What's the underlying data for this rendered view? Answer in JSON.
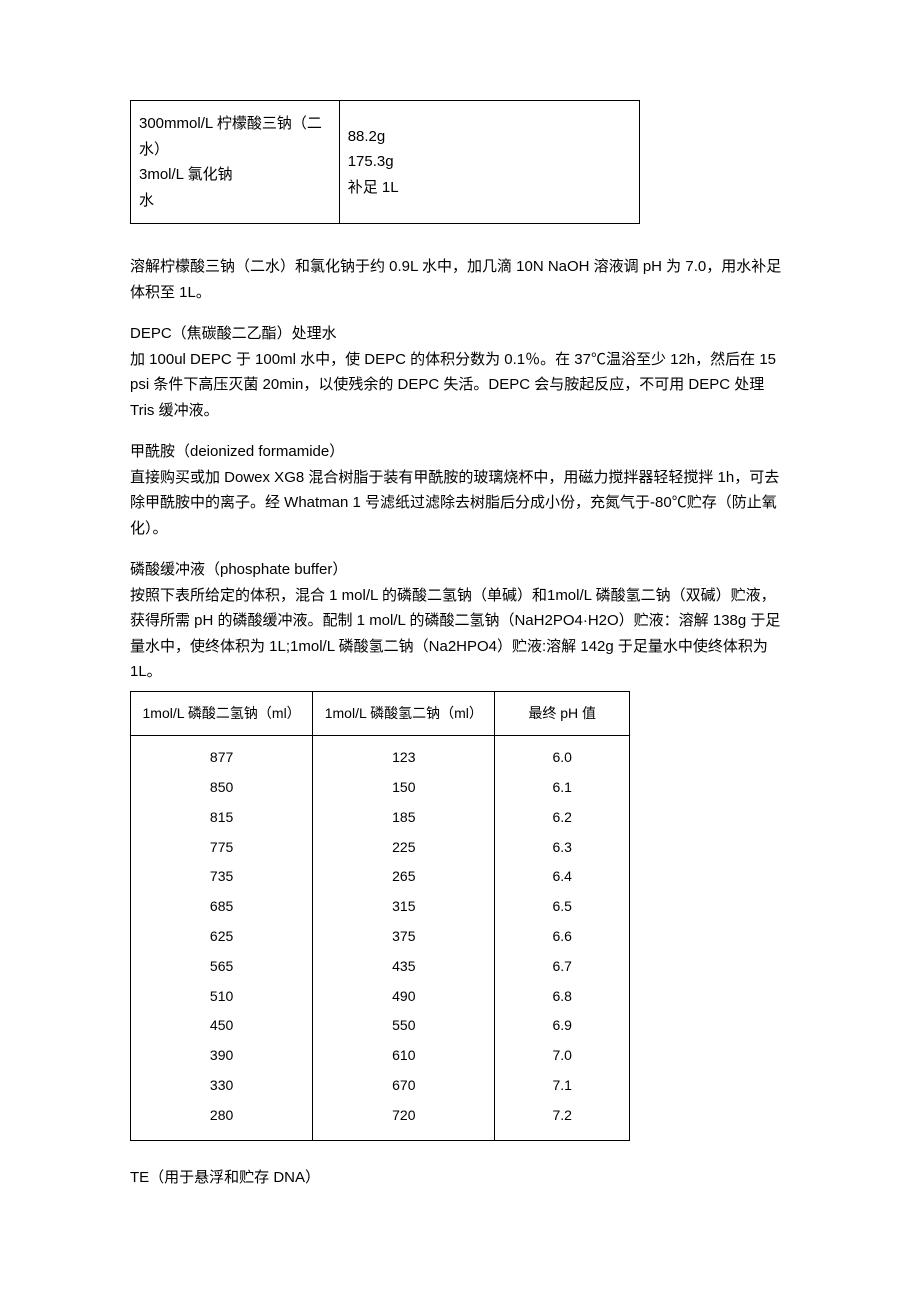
{
  "table1": {
    "left_lines": [
      "300mmol/L 柠檬酸三钠（二水）",
      "3mol/L 氯化钠",
      "水"
    ],
    "right_lines": [
      "88.2g",
      "175.3g",
      "补足 1L"
    ]
  },
  "para1": "溶解柠檬酸三钠（二水）和氯化钠于约 0.9L 水中，加几滴 10N NaOH 溶液调 pH 为 7.0，用水补足体积至 1L。",
  "depc_title": "DEPC（焦碳酸二乙酯）处理水",
  "depc_body": "加 100ul DEPC 于 100ml 水中，使 DEPC 的体积分数为 0.1％。在 37℃温浴至少 12h，然后在 15 psi 条件下高压灭菌 20min，以使残余的 DEPC 失活。DEPC 会与胺起反应，不可用 DEPC 处理 Tris 缓冲液。",
  "formamide_title": "甲酰胺（deionized formamide）",
  "formamide_body": "直接购买或加 Dowex XG8 混合树脂于装有甲酰胺的玻璃烧杯中，用磁力搅拌器轻轻搅拌 1h，可去除甲酰胺中的离子。经 Whatman 1 号滤纸过滤除去树脂后分成小份，充氮气于-80℃贮存（防止氧化）。",
  "phosphate_title": "磷酸缓冲液（phosphate buffer）",
  "phosphate_body": "按照下表所给定的体积，混合 1 mol/L 的磷酸二氢钠（单碱）和1mol/L 磷酸氢二钠（双碱）贮液，获得所需 pH 的磷酸缓冲液。配制 1 mol/L 的磷酸二氢钠（NaH2PO4·H2O）贮液：溶解 138g 于足量水中，使终体积为 1L;1mol/L 磷酸氢二钠（Na2HPO4）贮液:溶解 142g 于足量水中使终体积为 1L。",
  "table2": {
    "headers": [
      "1mol/L 磷酸二氢钠（ml）",
      "1mol/L 磷酸氢二钠（ml）",
      "最终 pH 值"
    ],
    "rows": [
      [
        "877",
        "123",
        "6.0"
      ],
      [
        "850",
        "150",
        "6.1"
      ],
      [
        "815",
        "185",
        "6.2"
      ],
      [
        "775",
        "225",
        "6.3"
      ],
      [
        "735",
        "265",
        "6.4"
      ],
      [
        "685",
        "315",
        "6.5"
      ],
      [
        "625",
        "375",
        "6.6"
      ],
      [
        "565",
        "435",
        "6.7"
      ],
      [
        "510",
        "490",
        "6.8"
      ],
      [
        "450",
        "550",
        "6.9"
      ],
      [
        "390",
        "610",
        "7.0"
      ],
      [
        "330",
        "670",
        "7.1"
      ],
      [
        "280",
        "720",
        "7.2"
      ]
    ]
  },
  "te_title": "TE（用于悬浮和贮存 DNA）"
}
